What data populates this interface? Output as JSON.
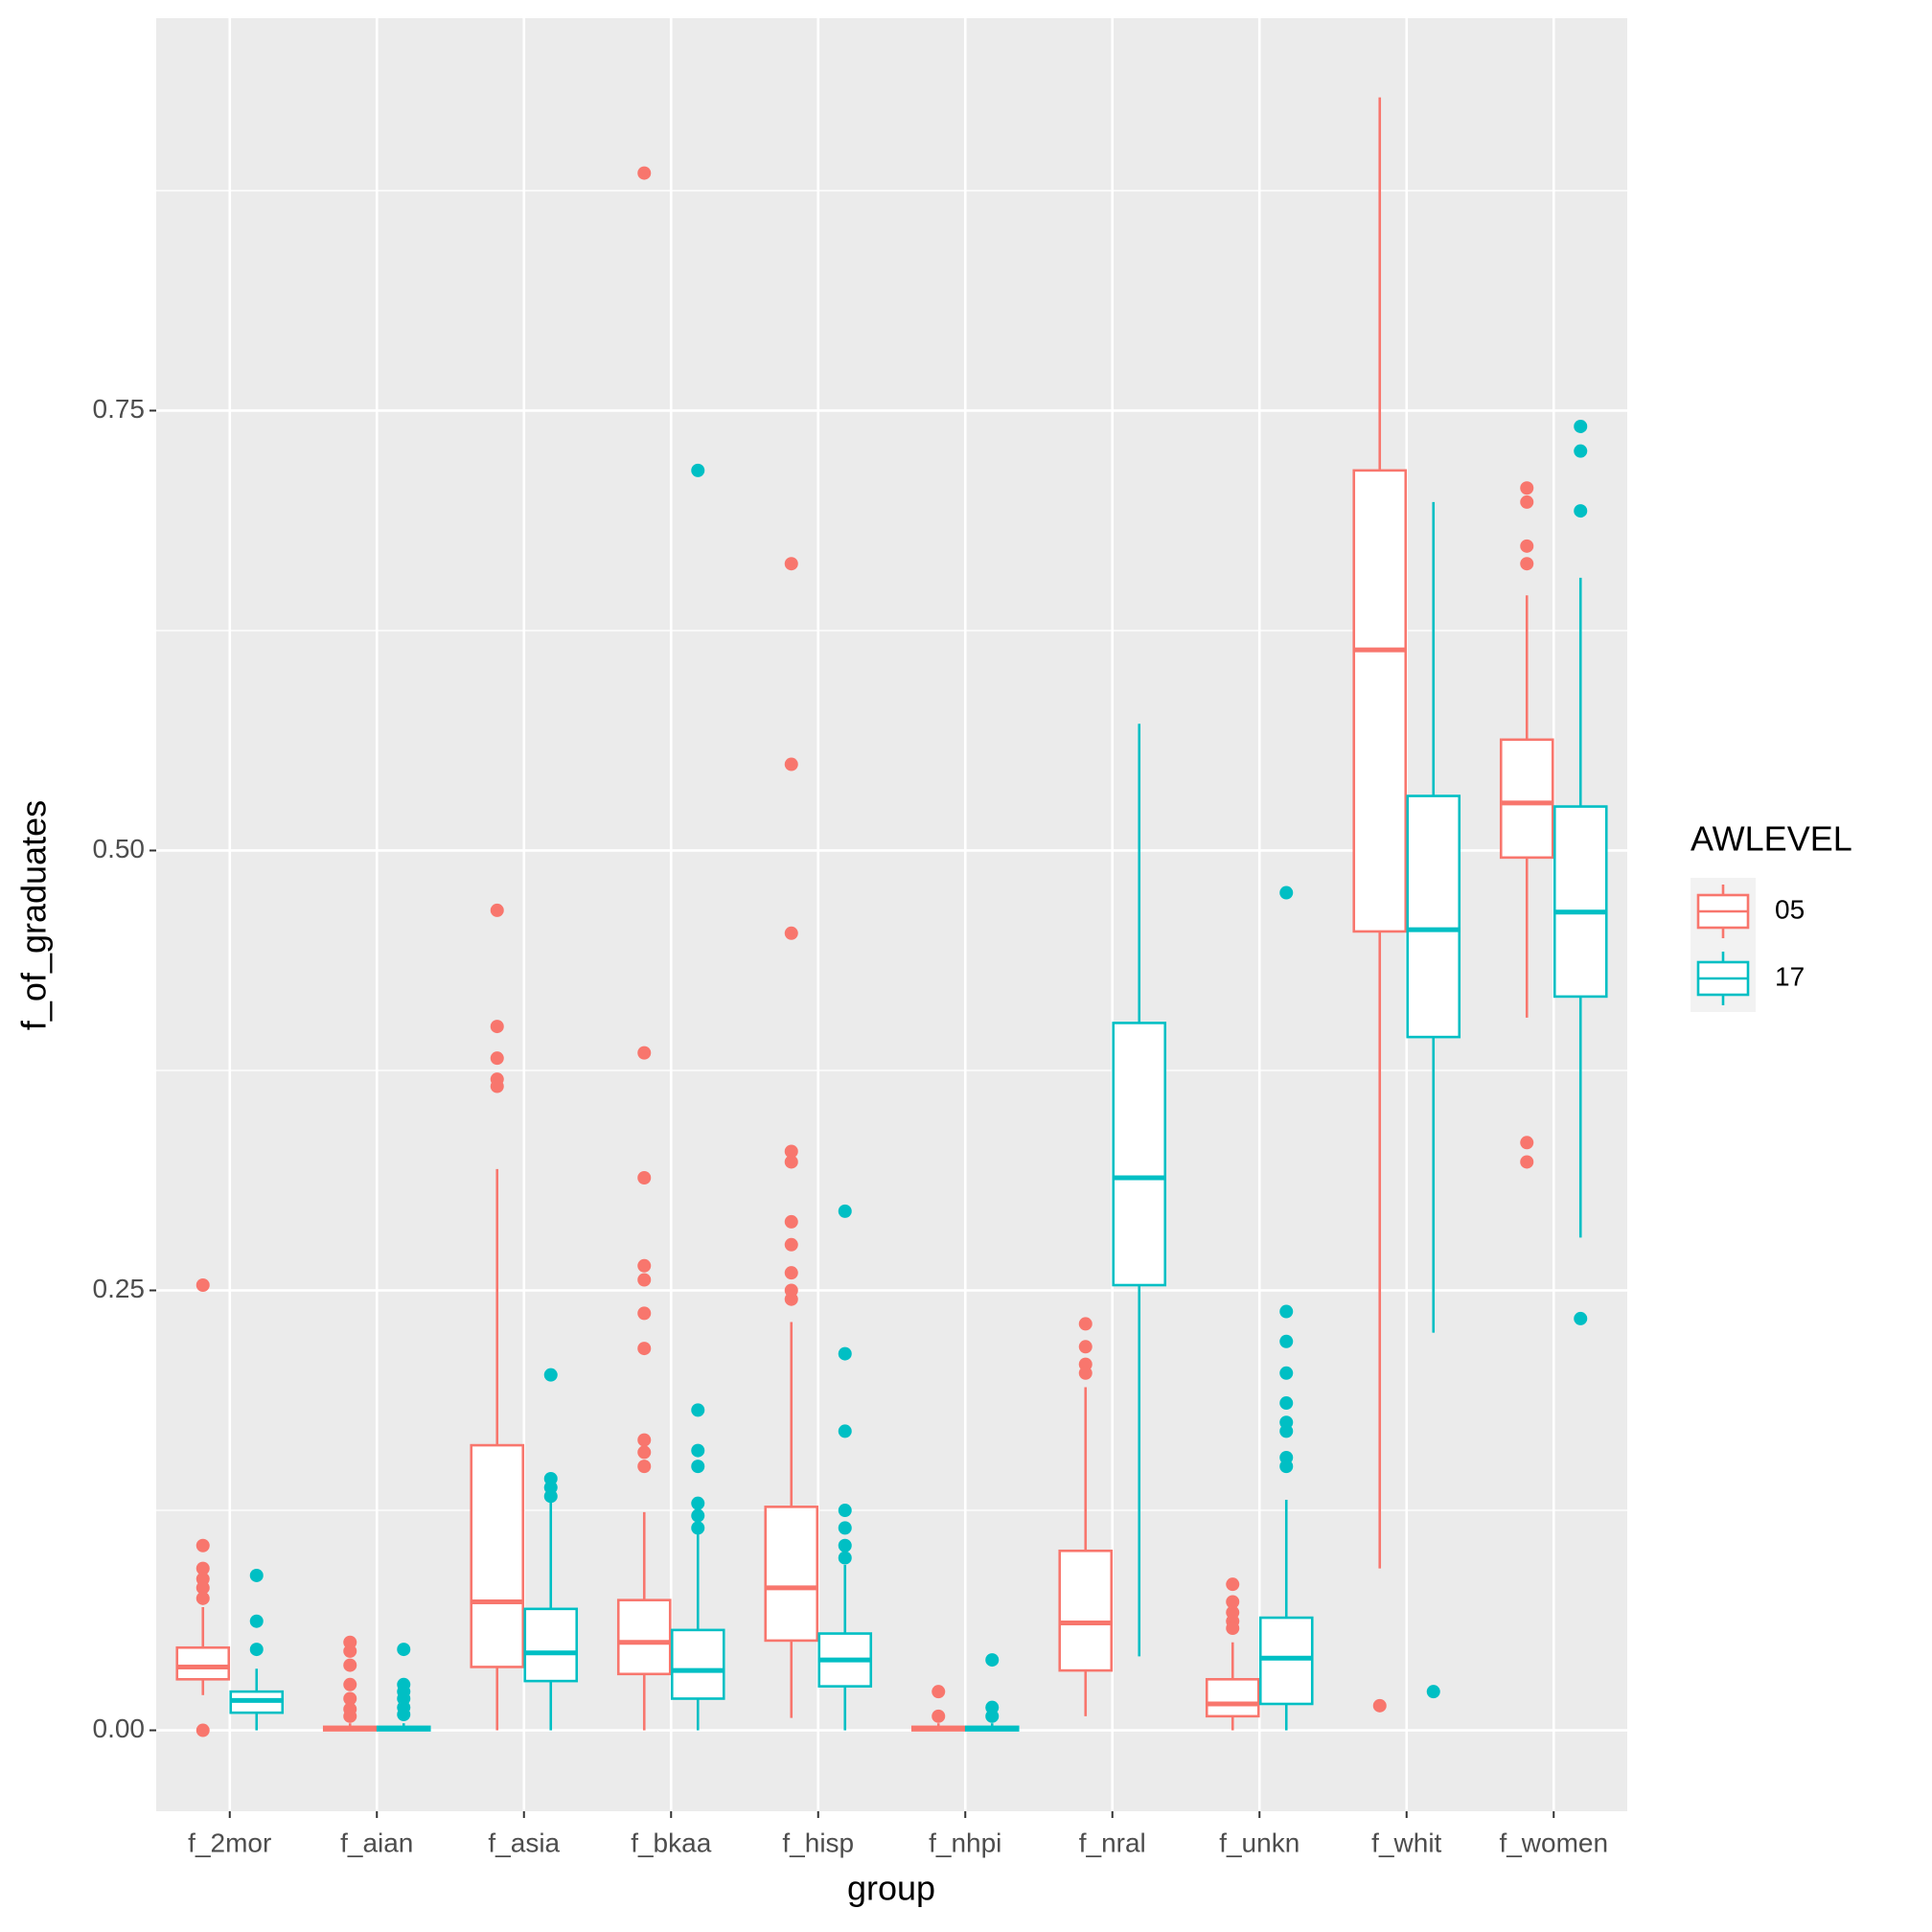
{
  "chart_data": {
    "type": "boxplot",
    "x_label": "group",
    "y_label": "f_of_graduates",
    "legend_title": "AWLEVEL",
    "legend_position": "right",
    "grid": true,
    "categories": [
      "f_2mor",
      "f_aian",
      "f_asia",
      "f_bkaa",
      "f_hisp",
      "f_nhpi",
      "f_nral",
      "f_unkn",
      "f_whit",
      "f_women"
    ],
    "ylim": [
      -0.046,
      0.973
    ],
    "yticks": [
      {
        "value": 0,
        "label": "0.00"
      },
      {
        "value": 0.25,
        "label": "0.25"
      },
      {
        "value": 0.5,
        "label": "0.50"
      },
      {
        "value": 0.75,
        "label": "0.75"
      }
    ],
    "series": [
      {
        "name": "05",
        "color": "#F8766D",
        "boxes": [
          {
            "low": 0.02,
            "q1": 0.029,
            "median": 0.036,
            "q3": 0.047,
            "high": 0.07,
            "outliers": [
              0.253,
              0.105,
              0.092,
              0.086,
              0.081,
              0.075,
              0
            ]
          },
          {
            "low": 0,
            "q1": 0,
            "median": 0.001,
            "q3": 0.002,
            "high": 0.004,
            "outliers": [
              0.05,
              0.045,
              0.037,
              0.026,
              0.018,
              0.012,
              0.008
            ]
          },
          {
            "low": 0,
            "q1": 0.036,
            "median": 0.073,
            "q3": 0.162,
            "high": 0.319,
            "outliers": [
              0.466,
              0.4,
              0.382,
              0.37,
              0.366
            ]
          },
          {
            "low": 0,
            "q1": 0.032,
            "median": 0.05,
            "q3": 0.074,
            "high": 0.124,
            "outliers": [
              0.885,
              0.385,
              0.314,
              0.264,
              0.256,
              0.237,
              0.217,
              0.165,
              0.158,
              0.15
            ]
          },
          {
            "low": 0.007,
            "q1": 0.051,
            "median": 0.081,
            "q3": 0.127,
            "high": 0.232,
            "outliers": [
              0.663,
              0.549,
              0.453,
              0.329,
              0.323,
              0.289,
              0.276,
              0.26,
              0.25,
              0.245
            ]
          },
          {
            "low": 0,
            "q1": 0,
            "median": 0.001,
            "q3": 0.002,
            "high": 0.004,
            "outliers": [
              0.022,
              0.008
            ]
          },
          {
            "low": 0.008,
            "q1": 0.034,
            "median": 0.061,
            "q3": 0.102,
            "high": 0.195,
            "outliers": [
              0.231,
              0.218,
              0.208,
              0.203
            ]
          },
          {
            "low": 0,
            "q1": 0.008,
            "median": 0.015,
            "q3": 0.029,
            "high": 0.05,
            "outliers": [
              0.083,
              0.073,
              0.067,
              0.062,
              0.058
            ]
          },
          {
            "low": 0.092,
            "q1": 0.454,
            "median": 0.614,
            "q3": 0.716,
            "high": 0.928,
            "outliers": [
              0.014
            ]
          },
          {
            "low": 0.405,
            "q1": 0.496,
            "median": 0.527,
            "q3": 0.563,
            "high": 0.645,
            "outliers": [
              0.706,
              0.698,
              0.673,
              0.663,
              0.334,
              0.323
            ]
          }
        ]
      },
      {
        "name": "17",
        "color": "#00BFC4",
        "boxes": [
          {
            "low": 0,
            "q1": 0.01,
            "median": 0.017,
            "q3": 0.022,
            "high": 0.035,
            "outliers": [
              0.046,
              0.062,
              0.088
            ]
          },
          {
            "low": 0,
            "q1": 0,
            "median": 0.001,
            "q3": 0.002,
            "high": 0.004,
            "outliers": [
              0.046,
              0.026,
              0.022,
              0.018,
              0.013,
              0.009
            ]
          },
          {
            "low": 0,
            "q1": 0.028,
            "median": 0.044,
            "q3": 0.069,
            "high": 0.135,
            "outliers": [
              0.202,
              0.143,
              0.138,
              0.133
            ]
          },
          {
            "low": 0,
            "q1": 0.018,
            "median": 0.034,
            "q3": 0.057,
            "high": 0.112,
            "outliers": [
              0.716,
              0.182,
              0.159,
              0.15,
              0.129,
              0.122,
              0.115
            ]
          },
          {
            "low": 0,
            "q1": 0.025,
            "median": 0.04,
            "q3": 0.055,
            "high": 0.094,
            "outliers": [
              0.295,
              0.214,
              0.17,
              0.125,
              0.115,
              0.105,
              0.098
            ]
          },
          {
            "low": 0,
            "q1": 0,
            "median": 0.001,
            "q3": 0.002,
            "high": 0.004,
            "outliers": [
              0.04,
              0.013,
              0.008
            ]
          },
          {
            "low": 0.042,
            "q1": 0.253,
            "median": 0.314,
            "q3": 0.402,
            "high": 0.572,
            "outliers": []
          },
          {
            "low": 0,
            "q1": 0.015,
            "median": 0.041,
            "q3": 0.064,
            "high": 0.131,
            "outliers": [
              0.476,
              0.238,
              0.221,
              0.203,
              0.186,
              0.175,
              0.17,
              0.155,
              0.15
            ]
          },
          {
            "low": 0.226,
            "q1": 0.394,
            "median": 0.455,
            "q3": 0.531,
            "high": 0.698,
            "outliers": [
              0.022
            ]
          },
          {
            "low": 0.28,
            "q1": 0.417,
            "median": 0.465,
            "q3": 0.525,
            "high": 0.655,
            "outliers": [
              0.741,
              0.727,
              0.693,
              0.234
            ]
          }
        ]
      }
    ]
  }
}
